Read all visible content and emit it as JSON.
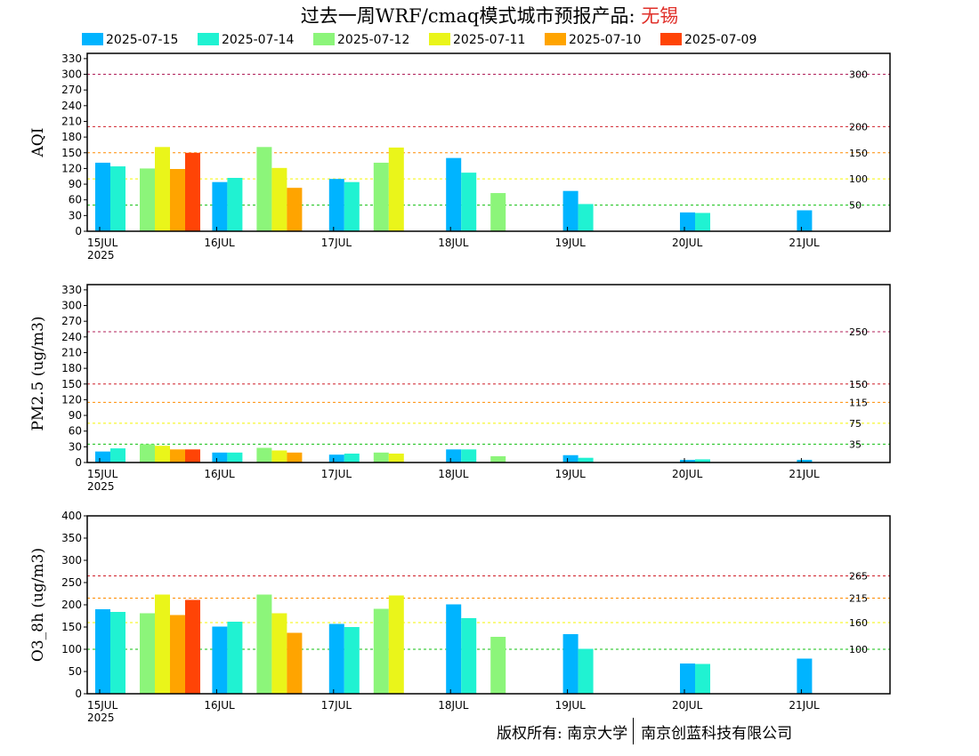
{
  "title": {
    "main": "过去一周WRF/cmaq模式城市预报产品: ",
    "city": "无锡"
  },
  "legend": [
    {
      "label": "2025-07-15",
      "color": "#00b4ff"
    },
    {
      "label": "2025-07-14",
      "color": "#20f2d2"
    },
    {
      "label": "2025-07-12",
      "color": "#8cf57a"
    },
    {
      "label": "2025-07-11",
      "color": "#eaf51a"
    },
    {
      "label": "2025-07-10",
      "color": "#ffa400"
    },
    {
      "label": "2025-07-09",
      "color": "#ff4406"
    }
  ],
  "footer": {
    "left": "版权所有: 南京大学",
    "right": "南京创蓝科技有限公司"
  },
  "chart_data": [
    {
      "type": "bar",
      "ylabel": "AQI",
      "ylim": [
        0,
        340
      ],
      "yticks": [
        0,
        30,
        60,
        90,
        120,
        150,
        180,
        210,
        240,
        270,
        300,
        330
      ],
      "x_ticks": [
        "15JUL",
        "16JUL",
        "17JUL",
        "18JUL",
        "19JUL",
        "20JUL",
        "21JUL"
      ],
      "x_year": "2025",
      "thresholds": [
        {
          "value": 300,
          "label": "300",
          "color": "#b0205a"
        },
        {
          "value": 200,
          "label": "200",
          "color": "#d0202a"
        },
        {
          "value": 150,
          "label": "150",
          "color": "#ff8c00"
        },
        {
          "value": 100,
          "label": "100",
          "color": "#f5f500"
        },
        {
          "value": 50,
          "label": "50",
          "color": "#10c010"
        }
      ],
      "series": [
        {
          "name": "2025-07-15",
          "values": [
            131,
            94,
            100,
            140,
            77,
            36,
            40
          ]
        },
        {
          "name": "2025-07-14",
          "values": [
            124,
            102,
            94,
            112,
            52,
            35,
            null
          ]
        },
        {
          "name": "2025-07-12",
          "values": [
            120,
            161,
            131,
            73,
            null,
            null,
            null
          ]
        },
        {
          "name": "2025-07-11",
          "values": [
            161,
            121,
            160,
            null,
            null,
            null,
            null
          ]
        },
        {
          "name": "2025-07-10",
          "values": [
            119,
            83,
            null,
            null,
            null,
            null,
            null
          ]
        },
        {
          "name": "2025-07-09",
          "values": [
            150,
            null,
            null,
            null,
            null,
            null,
            null
          ]
        }
      ]
    },
    {
      "type": "bar",
      "ylabel": "PM2.5 (ug/m3)",
      "ylim": [
        0,
        340
      ],
      "yticks": [
        0,
        30,
        60,
        90,
        120,
        150,
        180,
        210,
        240,
        270,
        300,
        330
      ],
      "x_ticks": [
        "15JUL",
        "16JUL",
        "17JUL",
        "18JUL",
        "19JUL",
        "20JUL",
        "21JUL"
      ],
      "x_year": "2025",
      "thresholds": [
        {
          "value": 250,
          "label": "250",
          "color": "#b0205a"
        },
        {
          "value": 150,
          "label": "150",
          "color": "#d0202a"
        },
        {
          "value": 115,
          "label": "115",
          "color": "#ff8c00"
        },
        {
          "value": 75,
          "label": "75",
          "color": "#f5f500"
        },
        {
          "value": 35,
          "label": "35",
          "color": "#10c010"
        }
      ],
      "series": [
        {
          "name": "2025-07-15",
          "values": [
            21,
            19,
            15,
            25,
            14,
            5,
            5
          ]
        },
        {
          "name": "2025-07-14",
          "values": [
            27,
            19,
            17,
            25,
            9,
            6,
            null
          ]
        },
        {
          "name": "2025-07-12",
          "values": [
            35,
            28,
            19,
            12,
            null,
            null,
            null
          ]
        },
        {
          "name": "2025-07-11",
          "values": [
            32,
            23,
            17,
            null,
            null,
            null,
            null
          ]
        },
        {
          "name": "2025-07-10",
          "values": [
            25,
            19,
            null,
            null,
            null,
            null,
            null
          ]
        },
        {
          "name": "2025-07-09",
          "values": [
            25,
            null,
            null,
            null,
            null,
            null,
            null
          ]
        }
      ]
    },
    {
      "type": "bar",
      "ylabel": "O3_8h (ug/m3)",
      "ylim": [
        0,
        400
      ],
      "yticks": [
        0,
        50,
        100,
        150,
        200,
        250,
        300,
        350,
        400
      ],
      "x_ticks": [
        "15JUL",
        "16JUL",
        "17JUL",
        "18JUL",
        "19JUL",
        "20JUL",
        "21JUL"
      ],
      "x_year": "2025",
      "thresholds": [
        {
          "value": 265,
          "label": "265",
          "color": "#d0202a"
        },
        {
          "value": 215,
          "label": "215",
          "color": "#ff8c00"
        },
        {
          "value": 160,
          "label": "160",
          "color": "#f5f500"
        },
        {
          "value": 100,
          "label": "100",
          "color": "#10c010"
        }
      ],
      "series": [
        {
          "name": "2025-07-15",
          "values": [
            190,
            151,
            157,
            201,
            134,
            68,
            79
          ]
        },
        {
          "name": "2025-07-14",
          "values": [
            184,
            162,
            150,
            170,
            101,
            67,
            null
          ]
        },
        {
          "name": "2025-07-12",
          "values": [
            181,
            223,
            191,
            128,
            null,
            null,
            null
          ]
        },
        {
          "name": "2025-07-11",
          "values": [
            223,
            181,
            221,
            null,
            null,
            null,
            null
          ]
        },
        {
          "name": "2025-07-10",
          "values": [
            177,
            137,
            null,
            null,
            null,
            null,
            null
          ]
        },
        {
          "name": "2025-07-09",
          "values": [
            211,
            null,
            null,
            null,
            null,
            null,
            null
          ]
        }
      ]
    }
  ]
}
